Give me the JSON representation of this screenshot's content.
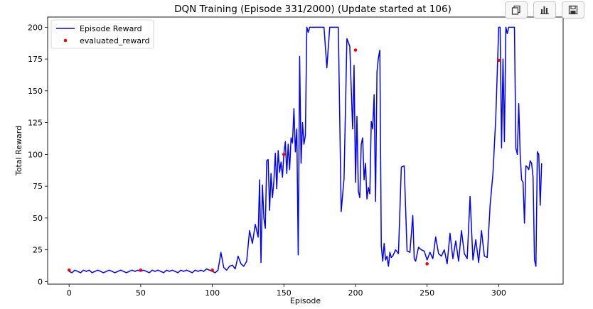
{
  "toolbar": {
    "buttons": [
      {
        "icon": "copy-icon"
      },
      {
        "icon": "bar-chart-icon"
      },
      {
        "icon": "save-icon"
      }
    ]
  },
  "chart_data": {
    "type": "line",
    "title": "DQN Training (Episode 331/2000) (Update started at 106)",
    "xlabel": "Episode",
    "ylabel": "Total Reward",
    "xlim": [
      -15,
      345
    ],
    "ylim": [
      -2,
      208
    ],
    "xticks": [
      0,
      50,
      100,
      150,
      200,
      250,
      300
    ],
    "yticks": [
      0,
      25,
      50,
      75,
      100,
      125,
      150,
      175,
      200
    ],
    "legend": {
      "position": "top-left"
    },
    "grid": false,
    "series": [
      {
        "name": "Episode Reward",
        "color": "#0000ff",
        "kind": "line",
        "x": [
          0,
          2,
          4,
          6,
          8,
          10,
          12,
          14,
          16,
          18,
          20,
          22,
          24,
          26,
          28,
          30,
          32,
          34,
          36,
          38,
          40,
          42,
          44,
          46,
          48,
          50,
          52,
          54,
          56,
          58,
          60,
          62,
          64,
          66,
          68,
          70,
          72,
          74,
          76,
          78,
          80,
          82,
          84,
          86,
          88,
          90,
          92,
          94,
          96,
          98,
          100,
          102,
          104,
          106,
          108,
          110,
          112,
          114,
          116,
          118,
          120,
          122,
          124,
          126,
          128,
          130,
          132,
          133,
          134,
          135,
          136,
          137,
          138,
          139,
          140,
          141,
          142,
          143,
          144,
          145,
          146,
          147,
          148,
          149,
          150,
          151,
          152,
          153,
          154,
          155,
          156,
          157,
          158,
          159,
          160,
          161,
          162,
          163,
          164,
          165,
          166,
          167,
          168,
          169,
          170,
          172,
          174,
          176,
          178,
          180,
          182,
          184,
          185,
          186,
          188,
          190,
          192,
          194,
          196,
          198,
          199,
          200,
          201,
          202,
          203,
          204,
          205,
          206,
          207,
          208,
          209,
          210,
          211,
          212,
          213,
          214,
          215,
          216,
          217,
          218,
          219,
          220,
          221,
          222,
          223,
          224,
          225,
          226,
          228,
          230,
          232,
          234,
          236,
          238,
          240,
          241,
          242,
          244,
          246,
          248,
          250,
          252,
          254,
          256,
          258,
          260,
          262,
          264,
          266,
          268,
          270,
          272,
          274,
          276,
          278,
          280,
          282,
          284,
          286,
          288,
          290,
          292,
          294,
          296,
          298,
          300,
          301,
          302,
          303,
          304,
          305,
          306,
          307,
          308,
          309,
          310,
          311,
          312,
          313,
          314,
          315,
          316,
          317,
          318,
          319,
          320,
          321,
          322,
          323,
          324,
          325,
          326,
          327,
          328,
          329,
          330
        ],
        "y": [
          8,
          7,
          9,
          8,
          7,
          9,
          8,
          9,
          7,
          8,
          9,
          8,
          7,
          8,
          9,
          8,
          7,
          8,
          9,
          8,
          7,
          8,
          9,
          8,
          9,
          8,
          9,
          8,
          7,
          9,
          8,
          9,
          8,
          7,
          9,
          8,
          9,
          8,
          7,
          9,
          8,
          9,
          8,
          7,
          9,
          8,
          9,
          8,
          10,
          9,
          8,
          7,
          9,
          23,
          11,
          9,
          12,
          13,
          10,
          20,
          14,
          12,
          16,
          40,
          30,
          45,
          35,
          80,
          15,
          76,
          50,
          42,
          95,
          96,
          56,
          85,
          66,
          79,
          101,
          73,
          103,
          86,
          94,
          82,
          101,
          110,
          85,
          108,
          88,
          113,
          109,
          136,
          102,
          120,
          21,
          177,
          93,
          125,
          108,
          115,
          200,
          196,
          200,
          200,
          200,
          200,
          200,
          200,
          200,
          168,
          200,
          200,
          200,
          200,
          200,
          55,
          81,
          191,
          185,
          120,
          170,
          78,
          130,
          71,
          66,
          108,
          113,
          80,
          93,
          65,
          74,
          69,
          126,
          120,
          147,
          63,
          165,
          176,
          182,
          28,
          16,
          30,
          17,
          20,
          12,
          23,
          19,
          20,
          25,
          22,
          90,
          91,
          24,
          23,
          52,
          18,
          16,
          27,
          25,
          24,
          17,
          23,
          18,
          35,
          22,
          20,
          25,
          14,
          38,
          18,
          32,
          16,
          40,
          22,
          18,
          67,
          17,
          33,
          15,
          40,
          20,
          19,
          60,
          85,
          130,
          200,
          200,
          105,
          175,
          110,
          200,
          195,
          200,
          200,
          200,
          200,
          200,
          105,
          100,
          140,
          100,
          80,
          78,
          46,
          91,
          90,
          88,
          95,
          93,
          82,
          17,
          12,
          102,
          100,
          60,
          93
        ]
      },
      {
        "name": "evaluated_reward",
        "color": "#ff0000",
        "kind": "scatter",
        "x": [
          0,
          50,
          100,
          150,
          200,
          250,
          300
        ],
        "y": [
          9,
          9,
          9,
          100,
          182,
          14,
          174
        ]
      }
    ]
  }
}
